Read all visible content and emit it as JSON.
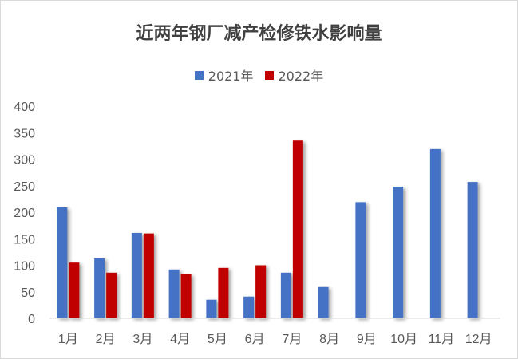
{
  "chart_data": {
    "type": "bar",
    "title": "近两年钢厂减产检修铁水影响量",
    "categories": [
      "1月",
      "2月",
      "3月",
      "4月",
      "5月",
      "6月",
      "7月",
      "8月",
      "9月",
      "10月",
      "11月",
      "12月"
    ],
    "series": [
      {
        "name": "2021年",
        "color": "#4472c4",
        "values": [
          209,
          113,
          161,
          92,
          35,
          41,
          86,
          59,
          219,
          248,
          319,
          257
        ]
      },
      {
        "name": "2022年",
        "color": "#c00000",
        "values": [
          105,
          86,
          160,
          83,
          95,
          100,
          335,
          null,
          null,
          null,
          null,
          null
        ]
      }
    ],
    "yticks": [
      "0",
      "50",
      "100",
      "150",
      "200",
      "250",
      "300",
      "350",
      "400"
    ],
    "ylim": [
      0,
      400
    ],
    "grid": false,
    "legend_position": "top"
  }
}
